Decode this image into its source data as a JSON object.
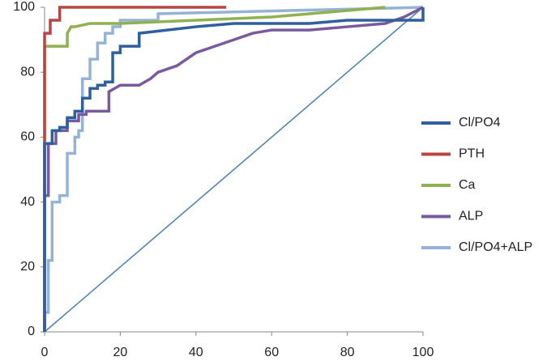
{
  "chart_data": {
    "type": "line",
    "xlim": [
      0,
      100
    ],
    "ylim": [
      0,
      100
    ],
    "xticks": [
      0,
      20,
      40,
      60,
      80,
      100
    ],
    "yticks": [
      0,
      20,
      40,
      60,
      80,
      100
    ],
    "grid": false,
    "legend": "right",
    "series": [
      {
        "name": "Cl/PO4",
        "color": "#2f5f9f",
        "x": [
          0,
          0,
          2,
          2,
          4,
          4,
          6,
          6,
          8,
          8,
          10,
          10,
          12,
          12,
          14,
          14,
          16,
          16,
          18,
          18,
          20,
          20,
          25,
          25,
          40,
          50,
          60,
          70,
          80,
          90,
          100,
          100
        ],
        "values": [
          0,
          58,
          58,
          62,
          62,
          63,
          63,
          66,
          66,
          68,
          68,
          72,
          72,
          75,
          75,
          76,
          76,
          77,
          77,
          86,
          86,
          88,
          88,
          92,
          94,
          95,
          95,
          95,
          96,
          96,
          96,
          100
        ]
      },
      {
        "name": "PTH",
        "color": "#b84744",
        "x": [
          0,
          0,
          1.5,
          1.5,
          4,
          4,
          48
        ],
        "values": [
          0,
          92,
          92,
          96,
          96,
          100,
          100
        ]
      },
      {
        "name": "Ca",
        "color": "#8fb14f",
        "x": [
          0,
          0,
          6,
          6,
          7,
          8,
          12,
          15,
          20,
          40,
          60,
          70,
          80,
          90
        ],
        "values": [
          42,
          88,
          88,
          92,
          94,
          94,
          95,
          95,
          95,
          96,
          97,
          98,
          99,
          100
        ]
      },
      {
        "name": "ALP",
        "color": "#7a5a9e",
        "x": [
          0,
          0,
          1,
          1,
          3,
          3,
          6,
          6,
          9,
          9,
          11,
          11,
          17,
          17,
          20,
          25,
          28,
          30,
          35,
          40,
          45,
          50,
          55,
          60,
          70,
          80,
          90,
          95,
          100
        ],
        "values": [
          0,
          42,
          42,
          58,
          58,
          62,
          62,
          65,
          65,
          67,
          67,
          68,
          68,
          74,
          76,
          76,
          78,
          80,
          82,
          86,
          88,
          90,
          92,
          93,
          93,
          94,
          95,
          97,
          100
        ]
      },
      {
        "name": "Cl/PO4+ALP",
        "color": "#95b3d7",
        "x": [
          0,
          0,
          1,
          1,
          2,
          2,
          4,
          4,
          6,
          6,
          8,
          8,
          9,
          9,
          10,
          10,
          12,
          12,
          14,
          14,
          16,
          16,
          18,
          18,
          20,
          20,
          30,
          30,
          100
        ],
        "values": [
          0,
          6,
          6,
          22,
          22,
          40,
          40,
          42,
          42,
          55,
          55,
          60,
          60,
          62,
          62,
          78,
          78,
          84,
          84,
          89,
          89,
          92,
          92,
          94,
          94,
          96,
          96,
          98,
          100
        ]
      },
      {
        "color": "#4a7ebb",
        "x": [
          0,
          100
        ],
        "values": [
          0,
          100
        ]
      }
    ]
  }
}
